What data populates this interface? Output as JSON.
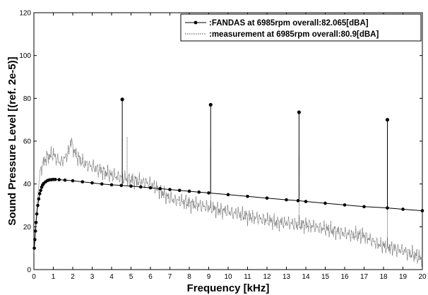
{
  "chart_data": {
    "type": "line",
    "xlabel": "Frequency [kHz]",
    "ylabel": "Sound Pressure Level [(ref. 2e-5)]",
    "xlim": [
      0,
      20
    ],
    "ylim": [
      0,
      120
    ],
    "xticks": [
      0,
      1,
      2,
      3,
      4,
      5,
      6,
      7,
      8,
      9,
      10,
      11,
      12,
      13,
      14,
      15,
      16,
      17,
      18,
      19,
      20
    ],
    "yticks": [
      0,
      20,
      40,
      60,
      80,
      100,
      120
    ],
    "grid": false,
    "legend_position": "top-right",
    "series": [
      {
        "name": ":FANDAS at 6985rpm  overall:82.065[dBA]",
        "style": "solid line with dot markers",
        "color": "#000000",
        "x": [
          0.02,
          0.05,
          0.08,
          0.11,
          0.15,
          0.2,
          0.25,
          0.3,
          0.35,
          0.4,
          0.45,
          0.5,
          0.6,
          0.7,
          0.8,
          0.9,
          1.0,
          1.1,
          1.3,
          1.6,
          2.0,
          2.5,
          3.0,
          3.5,
          4.0,
          4.5,
          5.0,
          5.5,
          6.0,
          6.5,
          7.0,
          7.5,
          8.0,
          8.5,
          9.0,
          10.0,
          11.0,
          12.0,
          13.0,
          13.6,
          14.0,
          15.0,
          16.0,
          17.0,
          18.2,
          19.0,
          20.0
        ],
        "y": [
          10,
          14,
          18,
          22,
          26,
          30,
          33,
          35.5,
          37,
          38.5,
          39.5,
          40.2,
          41,
          41.6,
          41.9,
          42,
          42.1,
          42.1,
          42,
          41.8,
          41.5,
          41,
          40.5,
          40,
          39.6,
          39.3,
          39,
          38.6,
          38.2,
          37.8,
          37.4,
          37,
          36.6,
          36.2,
          35.8,
          35,
          34.2,
          33.4,
          32.6,
          32.2,
          31.8,
          31,
          30.2,
          29.4,
          28.8,
          28.2,
          27.5
        ],
        "peaks": [
          {
            "x": 4.55,
            "y": 79.5
          },
          {
            "x": 9.1,
            "y": 77
          },
          {
            "x": 13.65,
            "y": 73.5
          },
          {
            "x": 18.2,
            "y": 70
          }
        ]
      },
      {
        "name": ":measurement at 6985rpm  overall:80.9[dBA]",
        "style": "dotted line",
        "color": "#555555",
        "x": [
          0.0,
          0.1,
          0.2,
          0.3,
          0.4,
          0.5,
          0.6,
          0.8,
          1.0,
          1.2,
          1.4,
          1.6,
          1.8,
          1.9,
          2.0,
          2.2,
          2.5,
          3.0,
          3.5,
          4.0,
          4.5,
          5.0,
          5.5,
          6.0,
          6.5,
          7.0,
          7.5,
          8.0,
          8.5,
          9.0,
          9.5,
          10.0,
          10.5,
          11.0,
          11.5,
          12.0,
          12.5,
          13.0,
          13.5,
          14.0,
          14.5,
          15.0,
          15.5,
          16.0,
          16.5,
          17.0,
          17.5,
          18.0,
          18.5,
          19.0,
          19.5,
          20.0
        ],
        "y": [
          8,
          22,
          34,
          44,
          48,
          50,
          52,
          53,
          54,
          51,
          50,
          52,
          55,
          61,
          57,
          53,
          50,
          48,
          46,
          44,
          43,
          42,
          41,
          40,
          37,
          33,
          32,
          31,
          30,
          29,
          28,
          27,
          26,
          25,
          24,
          23,
          22,
          22,
          21,
          21,
          20,
          19,
          18,
          17,
          16,
          16,
          13,
          11,
          10,
          9,
          7,
          5
        ],
        "spikes": [
          {
            "x": 4.55,
            "y": 62
          },
          {
            "x": 4.8,
            "y": 62
          },
          {
            "x": 9.1,
            "y": 57
          },
          {
            "x": 13.65,
            "y": 53
          },
          {
            "x": 18.2,
            "y": 50
          }
        ]
      }
    ]
  }
}
